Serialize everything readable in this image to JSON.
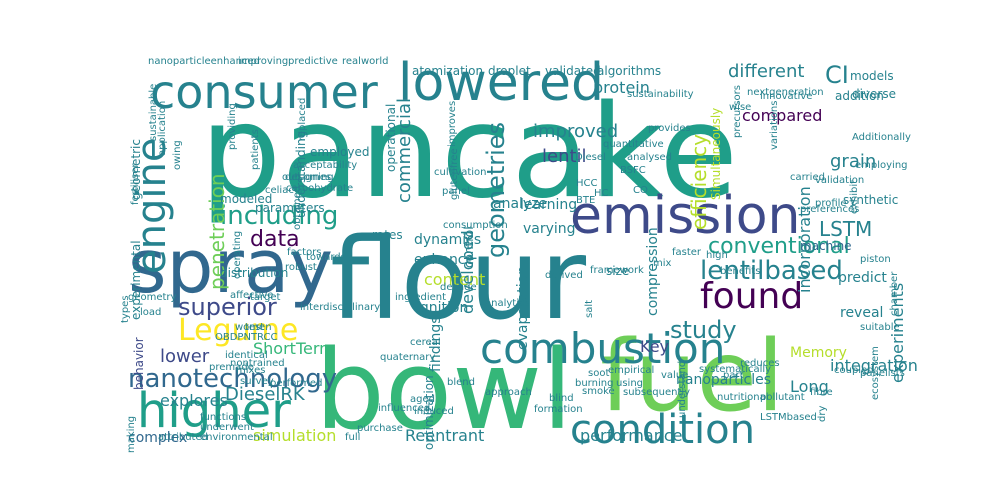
{
  "colors": {
    "background": "#ffffff",
    "palette": [
      "#440154",
      "#482878",
      "#3e4a89",
      "#31688e",
      "#26828e",
      "#1f9e89",
      "#35b779",
      "#6ece58",
      "#b5de2b",
      "#fde725"
    ]
  },
  "words": [
    {
      "text": "pancake",
      "color": "#1f9e89"
    },
    {
      "text": "flour",
      "color": "#26828e"
    },
    {
      "text": "bowl",
      "color": "#35b779"
    },
    {
      "text": "fuel",
      "color": "#6ece58"
    },
    {
      "text": "spray",
      "color": "#31688e"
    },
    {
      "text": "emission",
      "color": "#3e4a89"
    },
    {
      "text": "consumer",
      "color": "#26828e"
    },
    {
      "text": "lowered",
      "color": "#26828e"
    },
    {
      "text": "combustion",
      "color": "#26828e"
    },
    {
      "text": "condition",
      "color": "#26828e"
    },
    {
      "text": "higher",
      "color": "#1f9e89"
    },
    {
      "text": "engine",
      "color": "#26828e"
    },
    {
      "text": "found",
      "color": "#440154"
    },
    {
      "text": "lentilbased",
      "color": "#26828e"
    },
    {
      "text": "Legume",
      "color": "#fde725"
    },
    {
      "text": "conventional",
      "color": "#1f9e89"
    },
    {
      "text": "nanotechnology",
      "color": "#31688e"
    },
    {
      "text": "including",
      "color": "#1f9e89"
    },
    {
      "text": "geometries",
      "color": "#26828e"
    },
    {
      "text": "efficiency",
      "color": "#b5de2b"
    },
    {
      "text": "superior",
      "color": "#3e4a89"
    },
    {
      "text": "study",
      "color": "#26828e"
    },
    {
      "text": "penetration",
      "color": "#6ece58"
    },
    {
      "text": "different",
      "color": "#26828e"
    },
    {
      "text": "data",
      "color": "#440154"
    },
    {
      "text": "CI",
      "color": "#26828e"
    },
    {
      "text": "LSTM",
      "color": "#26828e"
    },
    {
      "text": "improved",
      "color": "#26828e"
    },
    {
      "text": "lentil",
      "color": "#3e4a89"
    },
    {
      "text": "protein",
      "color": "#26828e"
    },
    {
      "text": "commercial",
      "color": "#26828e"
    },
    {
      "text": "grain",
      "color": "#26828e"
    },
    {
      "text": "compared",
      "color": "#440154"
    },
    {
      "text": "DieselRK",
      "color": "#26828e"
    },
    {
      "text": "simulation",
      "color": "#b5de2b"
    },
    {
      "text": "content",
      "color": "#b5de2b"
    },
    {
      "text": "experiments",
      "color": "#26828e"
    },
    {
      "text": "Reentrant",
      "color": "#26828e"
    },
    {
      "text": "performance",
      "color": "#26828e"
    },
    {
      "text": "lower",
      "color": "#3e4a89"
    },
    {
      "text": "explores",
      "color": "#26828e"
    },
    {
      "text": "developed",
      "color": "#26828e"
    },
    {
      "text": "incorporation",
      "color": "#26828e"
    },
    {
      "text": "ShortTerm",
      "color": "#35b779"
    },
    {
      "text": "Long",
      "color": "#26828e"
    },
    {
      "text": "integration",
      "color": "#26828e"
    },
    {
      "text": "Memory",
      "color": "#b5de2b"
    },
    {
      "text": "Key",
      "color": "#3e4a89"
    },
    {
      "text": "reveal",
      "color": "#26828e"
    },
    {
      "text": "predict",
      "color": "#26828e"
    },
    {
      "text": "nanoparticles",
      "color": "#26828e"
    },
    {
      "text": "machine",
      "color": "#31688e"
    },
    {
      "text": "enhance",
      "color": "#26828e"
    },
    {
      "text": "analyze",
      "color": "#26828e"
    },
    {
      "text": "varying",
      "color": "#26828e"
    },
    {
      "text": "learning",
      "color": "#26828e"
    },
    {
      "text": "dynamics",
      "color": "#26828e"
    },
    {
      "text": "ignition",
      "color": "#26828e"
    },
    {
      "text": "evaporation",
      "color": "#26828e"
    },
    {
      "text": "compression",
      "color": "#26828e"
    },
    {
      "text": "findings",
      "color": "#26828e"
    },
    {
      "text": "optimization",
      "color": "#26828e"
    },
    {
      "text": "complex",
      "color": "#31688e"
    },
    {
      "text": "behavior",
      "color": "#3e4a89"
    },
    {
      "text": "modeled",
      "color": "#26828e"
    },
    {
      "text": "distribution",
      "color": "#26828e"
    },
    {
      "text": "understanding",
      "color": "#26828e"
    },
    {
      "text": "parameters",
      "color": "#26828e"
    },
    {
      "text": "employed",
      "color": "#26828e"
    },
    {
      "text": "experimental",
      "color": "#26828e"
    },
    {
      "text": "geometric",
      "color": "#26828e"
    },
    {
      "text": "control",
      "color": "#26828e"
    },
    {
      "text": "rates",
      "color": "#26828e"
    },
    {
      "text": "operational",
      "color": "#26828e"
    },
    {
      "text": "droplet",
      "color": "#26828e"
    },
    {
      "text": "atomization",
      "color": "#26828e"
    },
    {
      "text": "validated",
      "color": "#26828e"
    },
    {
      "text": "algorithms",
      "color": "#26828e"
    },
    {
      "text": "models",
      "color": "#26828e"
    },
    {
      "text": "addition",
      "color": "#26828e"
    },
    {
      "text": "diverse",
      "color": "#26828e"
    },
    {
      "text": "Simultaneously",
      "color": "#b5de2b"
    },
    {
      "text": "size",
      "color": "#26828e"
    },
    {
      "text": "synthetic",
      "color": "#26828e"
    },
    {
      "text": "blend",
      "color": "#26828e"
    },
    {
      "text": "approach",
      "color": "#26828e"
    },
    {
      "text": "quaternary",
      "color": "#26828e"
    },
    {
      "text": "empirical",
      "color": "#26828e"
    },
    {
      "text": "nutritional",
      "color": "#26828e"
    },
    {
      "text": "pollutant",
      "color": "#26828e"
    },
    {
      "text": "fibre",
      "color": "#26828e"
    },
    {
      "text": "coupled",
      "color": "#26828e"
    },
    {
      "text": "panelists",
      "color": "#26828e"
    },
    {
      "text": "ecosystem",
      "color": "#26828e"
    },
    {
      "text": "chamber",
      "color": "#26828e"
    },
    {
      "text": "piston",
      "color": "#26828e"
    },
    {
      "text": "analytics",
      "color": "#26828e"
    },
    {
      "text": "functions",
      "color": "#26828e"
    },
    {
      "text": "underwent",
      "color": "#26828e"
    },
    {
      "text": "environmental",
      "color": "#26828e"
    },
    {
      "text": "attributed",
      "color": "#26828e"
    },
    {
      "text": "making",
      "color": "#26828e"
    },
    {
      "text": "purchase",
      "color": "#26828e"
    },
    {
      "text": "induced",
      "color": "#26828e"
    },
    {
      "text": "aged",
      "color": "#26828e"
    },
    {
      "text": "influenced",
      "color": "#26828e"
    },
    {
      "text": "formation",
      "color": "#26828e"
    },
    {
      "text": "blind",
      "color": "#26828e"
    },
    {
      "text": "burning",
      "color": "#26828e"
    },
    {
      "text": "smoke",
      "color": "#26828e"
    },
    {
      "text": "soot",
      "color": "#26828e"
    },
    {
      "text": "using",
      "color": "#26828e"
    },
    {
      "text": "value",
      "color": "#26828e"
    },
    {
      "text": "part",
      "color": "#26828e"
    },
    {
      "text": "reduces",
      "color": "#26828e"
    },
    {
      "text": "nanoparticleenhanced",
      "color": "#26828e"
    },
    {
      "text": "improving",
      "color": "#26828e"
    },
    {
      "text": "predictive",
      "color": "#26828e"
    },
    {
      "text": "realworld",
      "color": "#26828e"
    },
    {
      "text": "sustainability",
      "color": "#26828e"
    },
    {
      "text": "nextgeneration",
      "color": "#26828e"
    },
    {
      "text": "wise",
      "color": "#26828e"
    },
    {
      "text": "provides",
      "color": "#26828e"
    },
    {
      "text": "analysed",
      "color": "#26828e"
    },
    {
      "text": "improves",
      "color": "#26828e"
    },
    {
      "text": "quantitative",
      "color": "#26828e"
    },
    {
      "text": "Diesel",
      "color": "#26828e"
    },
    {
      "text": "BSFC",
      "color": "#26828e"
    },
    {
      "text": "HC",
      "color": "#26828e"
    },
    {
      "text": "HCC",
      "color": "#26828e"
    },
    {
      "text": "CO",
      "color": "#26828e"
    },
    {
      "text": "BTE",
      "color": "#26828e"
    },
    {
      "text": "panel",
      "color": "#26828e"
    },
    {
      "text": "glutenfree",
      "color": "#26828e"
    },
    {
      "text": "celiac",
      "color": "#26828e"
    },
    {
      "text": "carbohydrate",
      "color": "#26828e"
    },
    {
      "text": "patients",
      "color": "#26828e"
    },
    {
      "text": "cereal",
      "color": "#26828e"
    },
    {
      "text": "identical",
      "color": "#26828e"
    },
    {
      "text": "nontrained",
      "color": "#26828e"
    },
    {
      "text": "premade",
      "color": "#26828e"
    },
    {
      "text": "mixes",
      "color": "#26828e"
    },
    {
      "text": "survey",
      "color": "#26828e"
    },
    {
      "text": "performed",
      "color": "#26828e"
    },
    {
      "text": "affective",
      "color": "#26828e"
    },
    {
      "text": "women",
      "color": "#26828e"
    },
    {
      "text": "target",
      "color": "#26828e"
    },
    {
      "text": "operating",
      "color": "#26828e"
    },
    {
      "text": "geometry",
      "color": "#26828e"
    },
    {
      "text": "load",
      "color": "#26828e"
    },
    {
      "text": "types",
      "color": "#26828e"
    },
    {
      "text": "towards",
      "color": "#26828e"
    },
    {
      "text": "fertiliser",
      "color": "#26828e"
    },
    {
      "text": "robust",
      "color": "#26828e"
    },
    {
      "text": "factors",
      "color": "#26828e"
    },
    {
      "text": "obtained",
      "color": "#26828e"
    },
    {
      "text": "designing",
      "color": "#26828e"
    },
    {
      "text": "sustainable",
      "color": "#26828e"
    },
    {
      "text": "owing",
      "color": "#26828e"
    },
    {
      "text": "application",
      "color": "#26828e"
    },
    {
      "text": "outcomes",
      "color": "#26828e"
    },
    {
      "text": "providing",
      "color": "#26828e"
    },
    {
      "text": "replaced",
      "color": "#26828e"
    },
    {
      "text": "acceptability",
      "color": "#26828e"
    },
    {
      "text": "interdisciplinary",
      "color": "#26828e"
    },
    {
      "text": "ingredient",
      "color": "#26828e"
    },
    {
      "text": "decade",
      "color": "#26828e"
    },
    {
      "text": "derived",
      "color": "#26828e"
    },
    {
      "text": "framework",
      "color": "#26828e"
    },
    {
      "text": "salt",
      "color": "#26828e"
    },
    {
      "text": "mix",
      "color": "#26828e"
    },
    {
      "text": "faster",
      "color": "#26828e"
    },
    {
      "text": "high",
      "color": "#26828e"
    },
    {
      "text": "benefits",
      "color": "#26828e"
    },
    {
      "text": "preferences",
      "color": "#26828e"
    },
    {
      "text": "carried",
      "color": "#26828e"
    },
    {
      "text": "variations",
      "color": "#26828e"
    },
    {
      "text": "validation",
      "color": "#26828e"
    },
    {
      "text": "profile",
      "color": "#26828e"
    },
    {
      "text": "Additionally",
      "color": "#26828e"
    },
    {
      "text": "employing",
      "color": "#26828e"
    },
    {
      "text": "exhibit",
      "color": "#26828e"
    },
    {
      "text": "precursors",
      "color": "#26828e"
    },
    {
      "text": "innovative",
      "color": "#26828e"
    },
    {
      "text": "subsequently",
      "color": "#26828e"
    },
    {
      "text": "understand",
      "color": "#26828e"
    },
    {
      "text": "systematically",
      "color": "#26828e"
    },
    {
      "text": "LSTMbased",
      "color": "#26828e"
    },
    {
      "text": "dry",
      "color": "#26828e"
    },
    {
      "text": "suitable",
      "color": "#26828e"
    },
    {
      "text": "full",
      "color": "#26828e"
    },
    {
      "text": "cultivation",
      "color": "#26828e"
    },
    {
      "text": "consumption",
      "color": "#26828e"
    },
    {
      "text": "test",
      "color": "#26828e"
    },
    {
      "text": "OBDPNTRCC",
      "color": "#26828e"
    }
  ]
}
